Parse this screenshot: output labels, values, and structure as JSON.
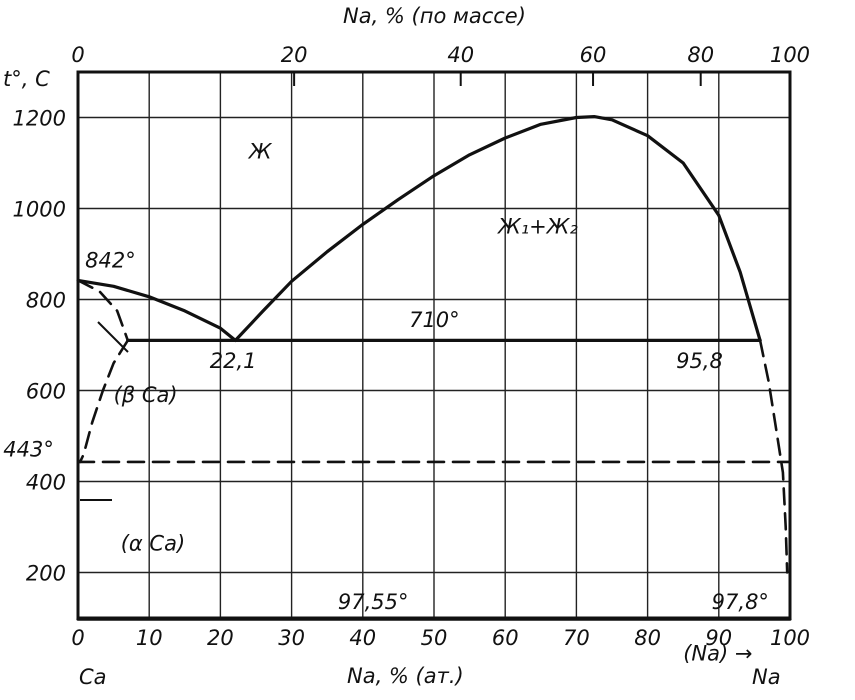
{
  "chart_data": {
    "type": "line",
    "top_axis": {
      "label": "Na, % (по массе)",
      "ticks": [
        {
          "value": 0,
          "label": "0"
        },
        {
          "value": 20,
          "label": "20"
        },
        {
          "value": 40,
          "label": "40"
        },
        {
          "value": 60,
          "label": "60"
        },
        {
          "value": 80,
          "label": "80"
        },
        {
          "value": 100,
          "label": "100"
        }
      ]
    },
    "x_axis": {
      "label": "Na, % (ат.)",
      "range": [
        0,
        100
      ],
      "ticks": [
        "0",
        "10",
        "20",
        "30",
        "40",
        "50",
        "60",
        "70",
        "80",
        "90",
        "100"
      ],
      "grid_step": 10
    },
    "y_axis": {
      "label": "t°, C",
      "range": [
        100,
        1300
      ],
      "ticks": [
        "200",
        "400",
        "600",
        "800",
        "1000",
        "1200"
      ],
      "grid": [
        200,
        400,
        600,
        800,
        1000,
        1200
      ]
    },
    "end_labels": {
      "left": "Ca",
      "right": "Na"
    },
    "series": [
      {
        "style": "solid",
        "x": [
          0,
          5,
          10,
          15,
          20,
          22.1
        ],
        "y": [
          842,
          829,
          806,
          775,
          737,
          710
        ]
      },
      {
        "style": "solid",
        "x": [
          22.1,
          26,
          30,
          35,
          40,
          45,
          50,
          55,
          60,
          65,
          70,
          72.5,
          75,
          80,
          85,
          90,
          93,
          95.8
        ],
        "y": [
          710,
          775,
          840,
          905,
          965,
          1020,
          1072,
          1118,
          1155,
          1185,
          1200,
          1202,
          1195,
          1160,
          1100,
          985,
          860,
          710
        ]
      },
      {
        "style": "solid",
        "x": [
          7,
          95.8
        ],
        "y": [
          710,
          710
        ]
      },
      {
        "style": "dashed",
        "x": [
          0,
          3,
          5.5,
          7
        ],
        "y": [
          842,
          818,
          775,
          710
        ]
      },
      {
        "style": "dashed",
        "x": [
          7,
          5,
          3.5,
          2,
          0.8,
          0.3
        ],
        "y": [
          710,
          660,
          600,
          530,
          460,
          443
        ]
      },
      {
        "style": "dashed",
        "x": [
          0,
          100
        ],
        "y": [
          443,
          443
        ]
      },
      {
        "style": "dashed",
        "x": [
          95.8,
          97,
          98,
          99,
          99.4,
          99.6
        ],
        "y": [
          710,
          620,
          520,
          420,
          300,
          200
        ]
      },
      {
        "style": "solid",
        "x": [
          0,
          100
        ],
        "y": [
          97.55,
          97.55
        ]
      }
    ],
    "annotations": [
      {
        "text": "842°",
        "x": 1,
        "y": 870
      },
      {
        "text": "22,1",
        "x": 18.5,
        "y": 650
      },
      {
        "text": "710°",
        "x": 46.5,
        "y": 740
      },
      {
        "text": "95,8",
        "x": 84,
        "y": 650
      },
      {
        "text": "(β Ca)",
        "x": 5,
        "y": 575
      },
      {
        "text": "443°",
        "x": -10.5,
        "y": 455
      },
      {
        "text": "(α Ca)",
        "x": 6,
        "y": 248
      },
      {
        "text": "97,55°",
        "x": 36.5,
        "y": 120
      },
      {
        "text": "97,8°",
        "x": 89,
        "y": 120
      },
      {
        "text": "(Na) →",
        "x": 85,
        "y": 7
      }
    ],
    "regions": [
      {
        "text": "Ж",
        "x": 24,
        "y": 1110
      },
      {
        "text": "Ж₁+Ж₂",
        "x": 59,
        "y": 945
      }
    ]
  }
}
